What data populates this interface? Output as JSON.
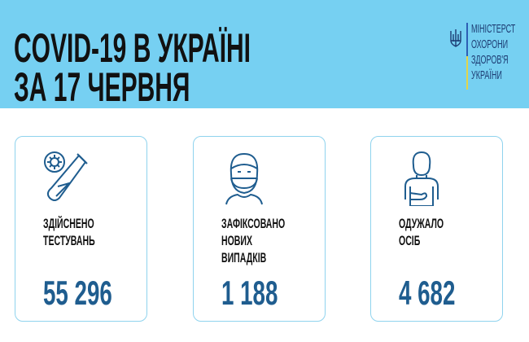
{
  "header": {
    "title_line1": "COVID-19 В УКРАЇНІ",
    "title_line2": "ЗА 17 ЧЕРВНЯ",
    "background_color": "#76d0f2"
  },
  "logo": {
    "icon": "trident-icon",
    "lines": [
      "МІНІСТЕРСТВО",
      "ОХОРОНИ",
      "ЗДОРОВ'Я",
      "УКРАЇНИ"
    ],
    "visible_lines": [
      "МІНІСТЕРСТ",
      "ОХОРОНИ",
      "ЗДОРОВ'Я",
      "УКРАЇНИ"
    ]
  },
  "cards": [
    {
      "icon": "test-tube-virus-icon",
      "label_lines": [
        "ЗДІЙСНЕНО",
        "ТЕСТУВАНЬ"
      ],
      "value": "55 296"
    },
    {
      "icon": "masked-person-icon",
      "label_lines": [
        "ЗАФІКСОВАНО",
        "НОВИХ",
        "ВИПАДКІВ"
      ],
      "value": "1 188"
    },
    {
      "icon": "recovered-person-icon",
      "label_lines": [
        "ОДУЖАЛО",
        "ОСІБ"
      ],
      "value": "4 682"
    }
  ],
  "colors": {
    "number": "#1f5d8f",
    "icon": "#1f5d8f",
    "card_border": "#8fd3ee"
  }
}
